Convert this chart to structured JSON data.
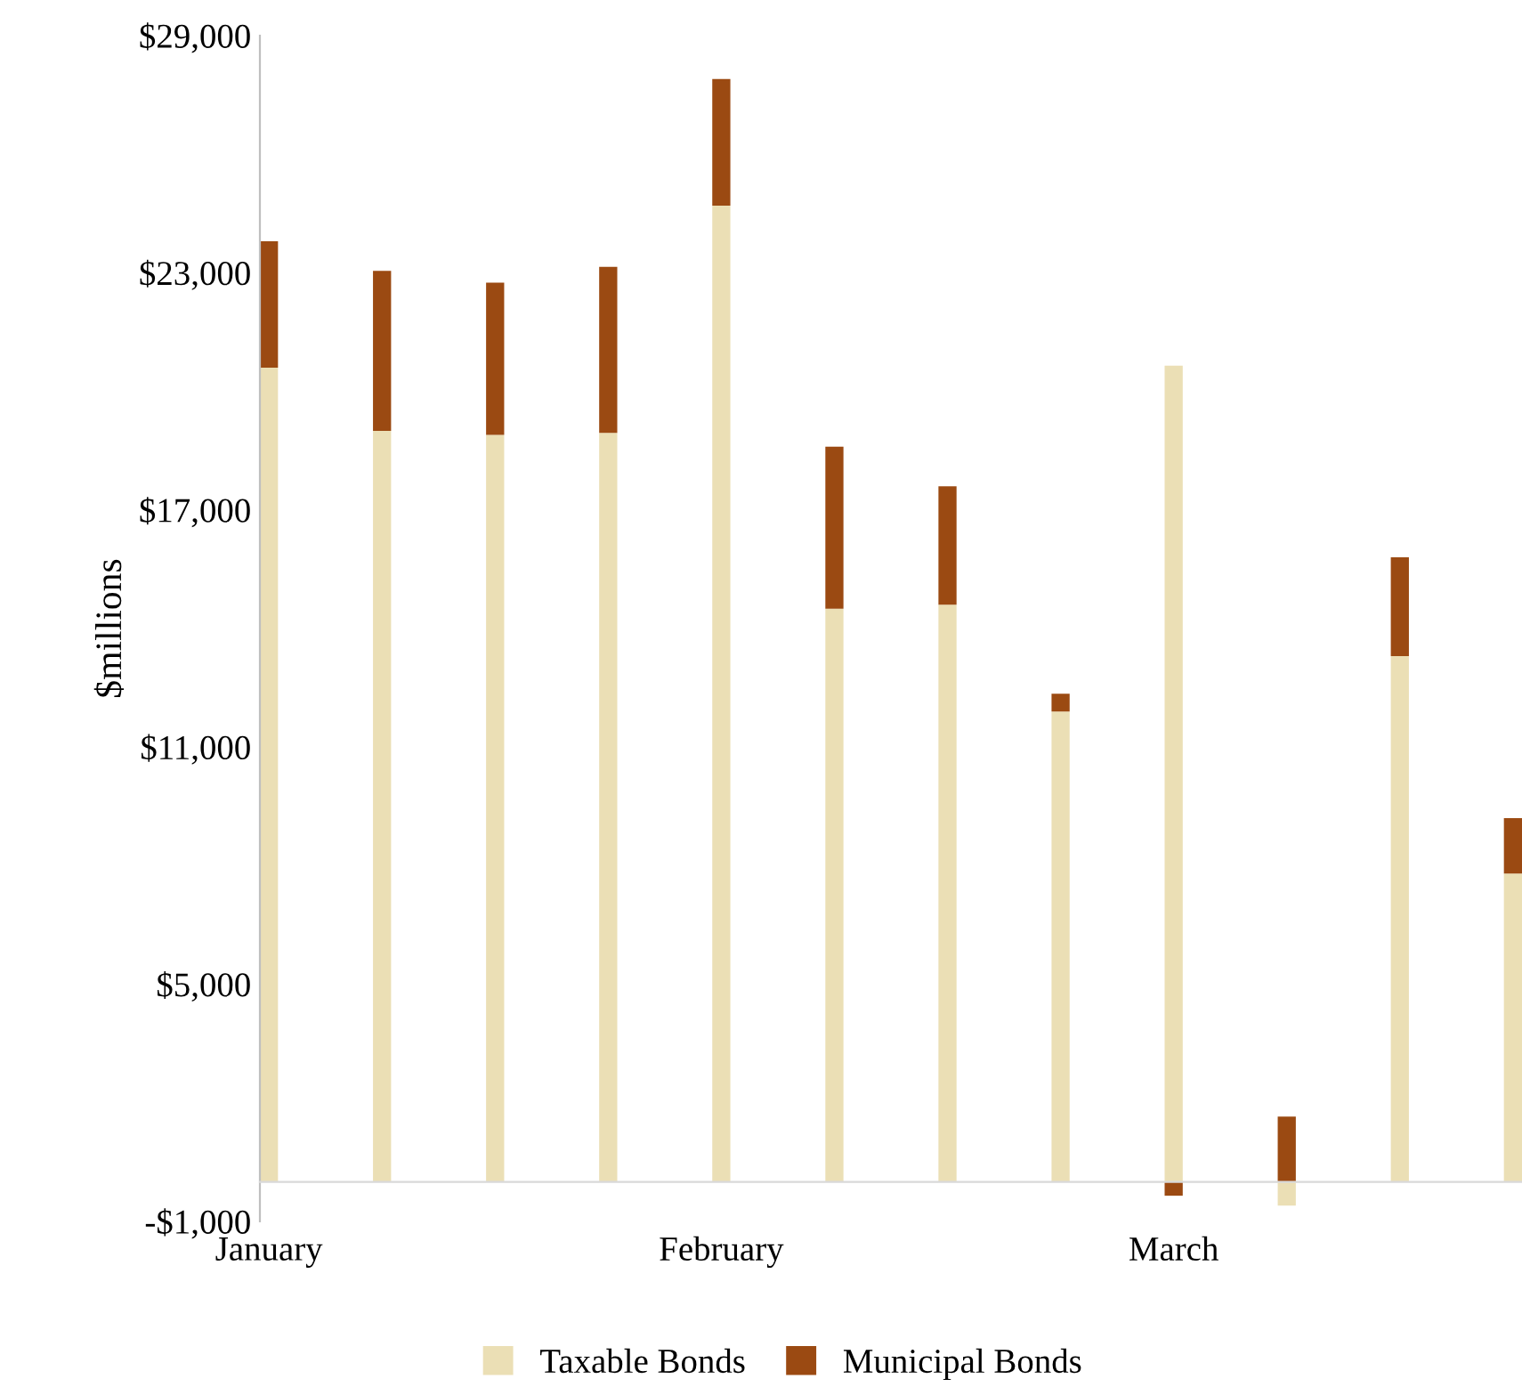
{
  "chart_data": {
    "type": "bar",
    "stacked": true,
    "ylabel": "$millions",
    "categories": [
      "January",
      null,
      null,
      null,
      "February",
      null,
      null,
      null,
      "March",
      null,
      null,
      null
    ],
    "series": [
      {
        "name": "Taxable Bonds",
        "color": "#ebdfb5",
        "values": [
          20600,
          19000,
          18900,
          18950,
          24700,
          14500,
          14600,
          11900,
          20650,
          -600,
          13300,
          7800
        ]
      },
      {
        "name": "Municipal Bonds",
        "color": "#9b4a12",
        "values": [
          3200,
          4050,
          3850,
          4200,
          3200,
          4100,
          3000,
          450,
          -350,
          1650,
          2500,
          1400
        ]
      }
    ],
    "ylim": [
      -1000,
      29000
    ],
    "yticks": [
      {
        "value": -1000,
        "label": "-$1,000"
      },
      {
        "value": 5000,
        "label": "$5,000"
      },
      {
        "value": 11000,
        "label": "$11,000"
      },
      {
        "value": 17000,
        "label": "$17,000"
      },
      {
        "value": 23000,
        "label": "$23,000"
      },
      {
        "value": 29000,
        "label": "$29,000"
      }
    ],
    "grid": false,
    "legend": "bottom"
  }
}
